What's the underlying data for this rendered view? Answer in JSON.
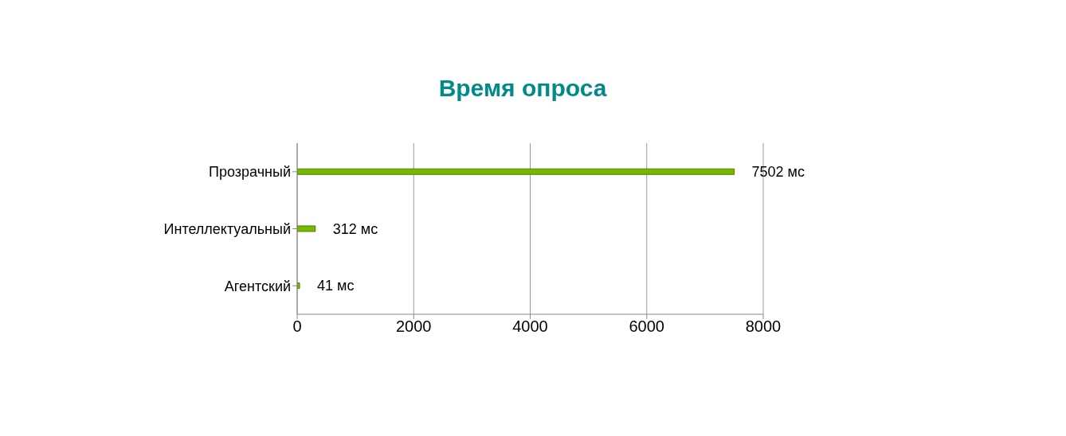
{
  "chart_data": {
    "type": "bar",
    "orientation": "horizontal",
    "title": "Время опроса",
    "categories": [
      "Прозрачный",
      "Интеллектуальный",
      "Агентский"
    ],
    "values": [
      7502,
      312,
      41
    ],
    "value_labels": [
      "7502 мс",
      "312 мс",
      "41 мс"
    ],
    "color": "#76b900",
    "xlim": [
      0,
      8000
    ],
    "xticks": [
      0,
      2000,
      4000,
      6000,
      8000
    ],
    "grid": "x"
  }
}
